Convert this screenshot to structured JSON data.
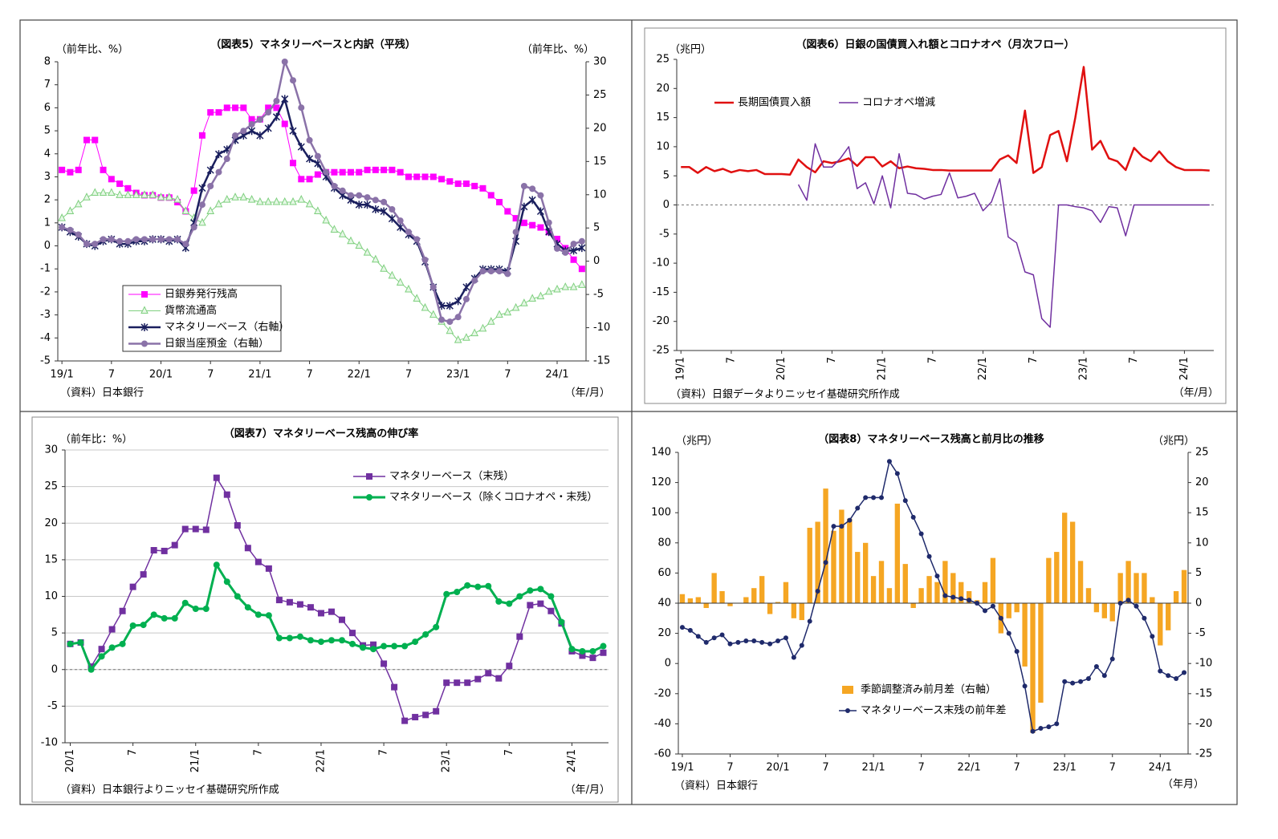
{
  "chart_data": [
    {
      "type": "line",
      "title": "（図表5）マネタリーベースと内訳（平残）",
      "y_label": "（前年比、%）",
      "y2_label": "（前年比、%）",
      "source": "（資料）日本銀行",
      "x_label": "（年/月）",
      "categories": [
        "19/1",
        null,
        null,
        null,
        null,
        null,
        "7",
        null,
        null,
        null,
        null,
        null,
        "20/1",
        null,
        null,
        null,
        null,
        null,
        "7",
        null,
        null,
        null,
        null,
        null,
        "21/1",
        null,
        null,
        null,
        null,
        null,
        "7",
        null,
        null,
        null,
        null,
        null,
        "22/1",
        null,
        null,
        null,
        null,
        null,
        "7",
        null,
        null,
        null,
        null,
        null,
        "23/1",
        null,
        null,
        null,
        null,
        null,
        "7",
        null,
        null,
        null,
        null,
        null,
        "24/1",
        null,
        null,
        null
      ],
      "ylim": [
        -5,
        8
      ],
      "yticks": [
        -5,
        -4,
        -3,
        -2,
        -1,
        0,
        1,
        2,
        3,
        4,
        5,
        6,
        7,
        8
      ],
      "y2lim": [
        -15,
        30
      ],
      "y2ticks": [
        -15,
        -10,
        -5,
        0,
        5,
        10,
        15,
        20,
        25,
        30
      ],
      "series": [
        {
          "name": "日銀券発行残高",
          "color": "#ff00ff",
          "marker": "square",
          "values": [
            3.3,
            3.2,
            3.3,
            4.6,
            4.6,
            3.3,
            2.9,
            2.7,
            2.5,
            2.3,
            2.2,
            2.2,
            2.1,
            2.1,
            1.9,
            1.5,
            2.4,
            4.8,
            5.8,
            5.8,
            6.0,
            6.0,
            6.0,
            5.5,
            5.5,
            6.0,
            6.0,
            5.3,
            3.6,
            2.9,
            2.9,
            3.1,
            3.2,
            3.2,
            3.2,
            3.2,
            3.2,
            3.3,
            3.3,
            3.3,
            3.3,
            3.2,
            3.0,
            3.0,
            3.0,
            3.0,
            2.9,
            2.8,
            2.7,
            2.7,
            2.6,
            2.5,
            2.2,
            1.9,
            1.5,
            1.2,
            1.0,
            0.9,
            0.8,
            0.6,
            0.3,
            -0.1,
            -0.6,
            -1.0
          ]
        },
        {
          "name": "貨幣流通高",
          "color": "#7fd07f",
          "marker": "triangle",
          "values": [
            1.2,
            1.5,
            1.8,
            2.1,
            2.3,
            2.3,
            2.3,
            2.2,
            2.2,
            2.2,
            2.2,
            2.2,
            2.1,
            2.1,
            2.0,
            1.5,
            1.2,
            1.0,
            1.5,
            1.8,
            2.0,
            2.1,
            2.1,
            2.0,
            1.9,
            1.9,
            1.9,
            1.9,
            1.9,
            2.0,
            1.8,
            1.5,
            1.1,
            0.7,
            0.5,
            0.2,
            0.0,
            -0.3,
            -0.6,
            -1.0,
            -1.3,
            -1.6,
            -1.9,
            -2.3,
            -2.7,
            -3.0,
            -3.3,
            -3.7,
            -4.1,
            -4.0,
            -3.8,
            -3.6,
            -3.3,
            -3.0,
            -2.9,
            -2.7,
            -2.5,
            -2.3,
            -2.2,
            -2.0,
            -1.9,
            -1.8,
            -1.8,
            -1.7
          ]
        },
        {
          "name": "マネタリーベース（右軸）",
          "color": "#1a1f5e",
          "marker": "star",
          "axis": "y2",
          "values": [
            5.1,
            4.4,
            3.7,
            2.6,
            2.3,
            3.0,
            3.3,
            2.6,
            2.6,
            3.0,
            3.0,
            3.3,
            3.3,
            3.0,
            3.3,
            2.0,
            5.8,
            11.0,
            13.7,
            16.1,
            16.8,
            18.2,
            18.9,
            19.6,
            18.9,
            20.0,
            21.7,
            24.4,
            19.6,
            17.2,
            15.4,
            14.7,
            12.7,
            11.0,
            9.9,
            9.2,
            8.5,
            8.5,
            7.8,
            7.5,
            6.4,
            5.1,
            4.0,
            3.0,
            -0.1,
            -3.9,
            -6.7,
            -6.7,
            -6.0,
            -3.9,
            -2.6,
            -1.2,
            -1.2,
            -1.2,
            -1.5,
            3.0,
            8.2,
            9.2,
            7.5,
            4.4,
            2.6,
            1.6,
            1.6,
            2.0
          ]
        },
        {
          "name": "日銀当座預金（右軸）",
          "color": "#8a72a8",
          "marker": "circle",
          "axis": "y2",
          "values": [
            5.1,
            4.7,
            4.0,
            2.6,
            2.6,
            3.3,
            3.3,
            3.0,
            3.0,
            3.3,
            3.3,
            3.3,
            3.3,
            3.3,
            3.3,
            2.6,
            5.1,
            8.5,
            11.3,
            13.4,
            15.4,
            18.9,
            19.6,
            20.6,
            21.3,
            22.4,
            24.1,
            30.0,
            27.2,
            23.1,
            18.2,
            15.8,
            13.4,
            11.3,
            10.6,
            9.9,
            9.9,
            9.6,
            9.2,
            8.9,
            7.8,
            6.1,
            4.4,
            3.3,
            0.2,
            -3.9,
            -8.8,
            -9.1,
            -8.4,
            -5.7,
            -2.9,
            -1.5,
            -1.5,
            -1.5,
            -1.9,
            4.4,
            11.3,
            10.9,
            9.9,
            5.8,
            1.9,
            1.3,
            2.6,
            3.0
          ]
        }
      ]
    },
    {
      "type": "line",
      "title": "（図表6）日銀の国債買入れ額とコロナオペ（月次フロー）",
      "y_label": "（兆円）",
      "source": "（資料）日銀データよりニッセイ基礎研究所作成",
      "x_label": "（年/月）",
      "categories": [
        "19/1",
        null,
        null,
        null,
        null,
        null,
        "7",
        null,
        null,
        null,
        null,
        null,
        "20/1",
        null,
        null,
        null,
        null,
        null,
        "7",
        null,
        null,
        null,
        null,
        null,
        "21/1",
        null,
        null,
        null,
        null,
        null,
        "7",
        null,
        null,
        null,
        null,
        null,
        "22/1",
        null,
        null,
        null,
        null,
        null,
        "7",
        null,
        null,
        null,
        null,
        null,
        "23/1",
        null,
        null,
        null,
        null,
        null,
        "7",
        null,
        null,
        null,
        null,
        null,
        "24/1",
        null,
        null,
        null
      ],
      "ylim": [
        -25,
        25
      ],
      "yticks": [
        -25,
        -20,
        -15,
        -10,
        -5,
        0,
        5,
        10,
        15,
        20,
        25
      ],
      "zero_line": "dashed",
      "series": [
        {
          "name": "長期国債買入額",
          "color": "#e01010",
          "marker": "none",
          "values": [
            6.5,
            6.5,
            5.5,
            6.5,
            5.8,
            6.2,
            5.6,
            6.0,
            5.8,
            6.0,
            5.3,
            5.3,
            5.3,
            5.2,
            7.8,
            6.5,
            5.6,
            7.5,
            7.2,
            7.5,
            8.0,
            6.7,
            8.2,
            8.2,
            6.6,
            7.5,
            6.3,
            6.6,
            6.3,
            6.2,
            6.0,
            6.0,
            5.9,
            5.9,
            5.9,
            5.9,
            5.9,
            5.9,
            7.8,
            8.5,
            7.2,
            16.2,
            5.5,
            6.5,
            12.0,
            12.7,
            7.5,
            15.0,
            23.7,
            9.5,
            11.0,
            8.0,
            7.5,
            6.0,
            9.8,
            8.3,
            7.5,
            9.2,
            7.5,
            6.5,
            6.0,
            6.0,
            6.0,
            5.9
          ]
        },
        {
          "name": "コロナオペ増減",
          "color": "#7030a0",
          "marker": "none",
          "values": [
            null,
            null,
            null,
            null,
            null,
            null,
            null,
            null,
            null,
            null,
            null,
            null,
            null,
            null,
            3.5,
            0.8,
            10.5,
            6.5,
            6.5,
            8.0,
            10.0,
            2.8,
            3.8,
            0.2,
            5.0,
            -0.5,
            8.8,
            2.0,
            1.8,
            1.0,
            1.5,
            1.8,
            5.5,
            1.2,
            1.5,
            2.0,
            -1.0,
            0.5,
            4.5,
            -5.5,
            -6.5,
            -11.5,
            -12.0,
            -19.5,
            -21.0,
            0.0,
            0.0,
            -0.3,
            -0.5,
            -1.0,
            -3.0,
            -0.3,
            -0.5,
            -5.3,
            0.0,
            0.0,
            0.0,
            0.0,
            0.0,
            0.0,
            0.0,
            0.0,
            0.0,
            0.0
          ]
        }
      ]
    },
    {
      "type": "line",
      "title": "（図表7）マネタリーベース残高の伸び率",
      "y_label": "（前年比：%）",
      "source": "（資料）日本銀行よりニッセイ基礎研究所作成",
      "x_label": "（年/月）",
      "categories": [
        "20/1",
        null,
        null,
        null,
        null,
        null,
        "7",
        null,
        null,
        null,
        null,
        null,
        "21/1",
        null,
        null,
        null,
        null,
        null,
        "7",
        null,
        null,
        null,
        null,
        null,
        "22/1",
        null,
        null,
        null,
        null,
        null,
        "7",
        null,
        null,
        null,
        null,
        null,
        "23/1",
        null,
        null,
        null,
        null,
        null,
        "7",
        null,
        null,
        null,
        null,
        null,
        "24/1",
        null,
        null,
        null
      ],
      "ylim": [
        -10,
        30
      ],
      "yticks": [
        -10,
        -5,
        0,
        5,
        10,
        15,
        20,
        25,
        30
      ],
      "grid": true,
      "zero_line": "dashed",
      "series": [
        {
          "name": "マネタリーベース（末残）",
          "color": "#7030a0",
          "marker": "square",
          "values": [
            3.5,
            3.7,
            0.4,
            2.8,
            5.5,
            8.0,
            11.3,
            13.0,
            16.3,
            16.2,
            17.0,
            19.2,
            19.2,
            19.1,
            26.2,
            23.9,
            19.7,
            16.6,
            14.7,
            13.8,
            9.5,
            9.2,
            8.9,
            8.5,
            7.7,
            7.9,
            6.8,
            5.0,
            3.3,
            3.4,
            0.8,
            -2.4,
            -7.0,
            -6.5,
            -6.2,
            -5.7,
            -1.8,
            -1.8,
            -1.8,
            -1.3,
            -0.5,
            -1.2,
            0.5,
            4.5,
            8.8,
            9.0,
            8.0,
            6.3,
            2.5,
            1.9,
            1.6,
            2.3
          ]
        },
        {
          "name": "マネタリーベース（除くコロナオペ・末残）",
          "color": "#00b050",
          "marker": "circle",
          "values": [
            3.5,
            3.7,
            0.0,
            1.8,
            3.0,
            3.5,
            6.0,
            6.1,
            7.5,
            7.0,
            7.0,
            9.1,
            8.3,
            8.3,
            14.3,
            12.0,
            10.0,
            8.5,
            7.5,
            7.4,
            4.3,
            4.3,
            4.5,
            4.0,
            3.8,
            4.0,
            4.0,
            3.5,
            3.0,
            2.8,
            3.2,
            3.2,
            3.2,
            3.8,
            4.8,
            5.8,
            10.3,
            10.6,
            11.5,
            11.3,
            11.4,
            9.3,
            9.0,
            10.0,
            10.8,
            11.0,
            10.0,
            6.5,
            2.8,
            2.5,
            2.5,
            3.2
          ]
        }
      ]
    },
    {
      "type": "combo",
      "title": "（図表8）マネタリーベース残高と前月比の推移",
      "y_label": "（兆円）",
      "y2_label": "（兆円）",
      "source": "（資料）日本銀行",
      "x_label": "（年月）",
      "categories": [
        "19/1",
        null,
        null,
        null,
        null,
        null,
        "7",
        null,
        null,
        null,
        null,
        null,
        "20/1",
        null,
        null,
        null,
        null,
        null,
        "7",
        null,
        null,
        null,
        null,
        null,
        "21/1",
        null,
        null,
        null,
        null,
        null,
        "7",
        null,
        null,
        null,
        null,
        null,
        "22/1",
        null,
        null,
        null,
        null,
        null,
        "7",
        null,
        null,
        null,
        null,
        null,
        "23/1",
        null,
        null,
        null,
        null,
        null,
        "7",
        null,
        null,
        null,
        null,
        null,
        "24/1",
        null,
        null,
        null
      ],
      "ylim": [
        -60,
        140
      ],
      "yticks": [
        -60,
        -40,
        -20,
        0,
        20,
        40,
        60,
        80,
        100,
        120,
        140
      ],
      "y2lim": [
        -25,
        25
      ],
      "y2ticks": [
        -25,
        -20,
        -15,
        -10,
        -5,
        0,
        5,
        10,
        15,
        20,
        25
      ],
      "series": [
        {
          "name": "季節調整済み前月差（右軸）",
          "type": "bar",
          "color": "#f5a623",
          "axis": "y2",
          "values": [
            1.5,
            0.8,
            1.0,
            -0.8,
            5.0,
            2.0,
            -0.5,
            0.0,
            1.0,
            2.5,
            4.5,
            -1.8,
            0.2,
            3.5,
            -2.5,
            -2.8,
            12.5,
            13.5,
            19.0,
            12.0,
            15.5,
            14.0,
            8.5,
            10.0,
            4.5,
            7.0,
            2.5,
            16.5,
            6.5,
            -0.8,
            2.5,
            4.5,
            3.5,
            7.0,
            5.0,
            3.5,
            2.0,
            0.5,
            3.5,
            7.5,
            -5.0,
            -2.5,
            -1.5,
            -10.5,
            -21.5,
            -16.5,
            7.5,
            8.5,
            15.0,
            13.5,
            7.0,
            2.5,
            -1.5,
            -2.5,
            -3.0,
            5.0,
            7.0,
            5.0,
            5.0,
            1.0,
            -7.0,
            -4.5,
            2.0,
            5.5
          ]
        },
        {
          "name": "マネタリーベース末残の前年差",
          "type": "line",
          "color": "#1f2a6b",
          "marker": "circle",
          "values": [
            24,
            22,
            18,
            14,
            17,
            19,
            13,
            14,
            15,
            15,
            14,
            13,
            15,
            17,
            4,
            12,
            28,
            48,
            67,
            91,
            91,
            95,
            103,
            110,
            110,
            110,
            134,
            126,
            108,
            97,
            86,
            71,
            58,
            45,
            44,
            43,
            42,
            40,
            35,
            38,
            30,
            20,
            8,
            -15,
            -45,
            -43,
            -42,
            -40,
            -12,
            -13,
            -12,
            -10,
            -2,
            -8,
            3,
            40,
            42,
            38,
            30,
            18,
            -5,
            -8,
            -10,
            -6
          ]
        }
      ]
    }
  ]
}
